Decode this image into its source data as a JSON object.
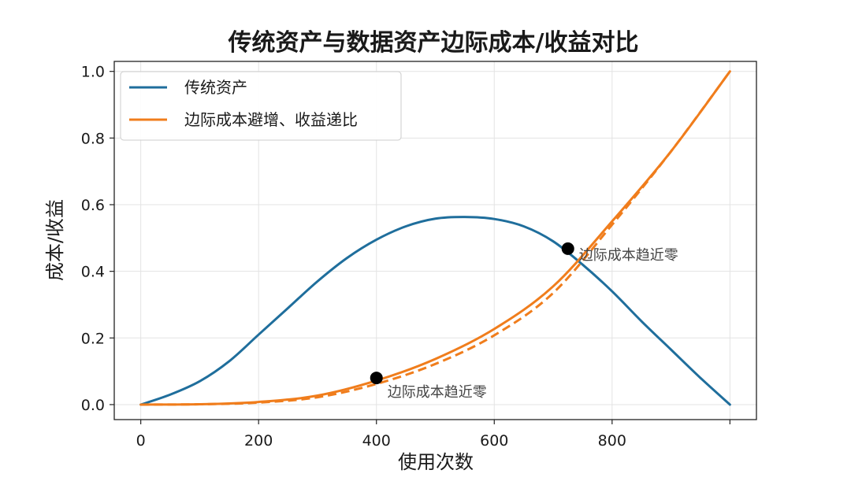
{
  "chart_data": {
    "type": "line",
    "title": "传统资产与数据资产边际成本/收益对比",
    "xlabel": "使用次数",
    "ylabel": "成本/收益",
    "xlim": [
      -45,
      1045
    ],
    "ylim": [
      -0.045,
      1.03
    ],
    "xticks": [
      0,
      200,
      400,
      600,
      800,
      1000
    ],
    "xtick_labels": [
      "0",
      "200",
      "400",
      "600",
      "800",
      ""
    ],
    "yticks": [
      0.0,
      0.2,
      0.4,
      0.6,
      0.8,
      1.0
    ],
    "ytick_labels": [
      "0.0",
      "0.2",
      "0.4",
      "0.6",
      "0.8",
      "1.0"
    ],
    "grid": true,
    "legend_position": "top-left",
    "series": [
      {
        "name": "传统资产",
        "color": "#1f6e9c",
        "style": "solid",
        "x": [
          0,
          50,
          100,
          150,
          200,
          250,
          300,
          350,
          400,
          450,
          500,
          550,
          600,
          650,
          700,
          750,
          800,
          850,
          900,
          950,
          1000
        ],
        "y": [
          0.0,
          0.03,
          0.07,
          0.13,
          0.21,
          0.29,
          0.37,
          0.44,
          0.495,
          0.535,
          0.558,
          0.563,
          0.557,
          0.535,
          0.49,
          0.42,
          0.34,
          0.25,
          0.165,
          0.08,
          0.0
        ]
      },
      {
        "name": "边际成本避增、收益递比",
        "color": "#f07d1c",
        "style": "solid",
        "x": [
          0,
          100,
          200,
          300,
          400,
          500,
          600,
          700,
          800,
          900,
          1000
        ],
        "y": [
          0.0,
          0.001,
          0.008,
          0.027,
          0.072,
          0.137,
          0.227,
          0.355,
          0.55,
          0.76,
          1.0
        ]
      },
      {
        "name": "",
        "color": "#f07d1c",
        "style": "dashed",
        "x": [
          0,
          100,
          200,
          300,
          400,
          500,
          600,
          700,
          800,
          900,
          1000
        ],
        "y": [
          0.0,
          0.001,
          0.006,
          0.022,
          0.062,
          0.122,
          0.208,
          0.335,
          0.54,
          0.76,
          1.0
        ]
      }
    ],
    "points": [
      {
        "x": 400,
        "y": 0.08,
        "label": "边际成本趋近零"
      },
      {
        "x": 725,
        "y": 0.468,
        "label": "边际成本趋近零"
      }
    ]
  }
}
